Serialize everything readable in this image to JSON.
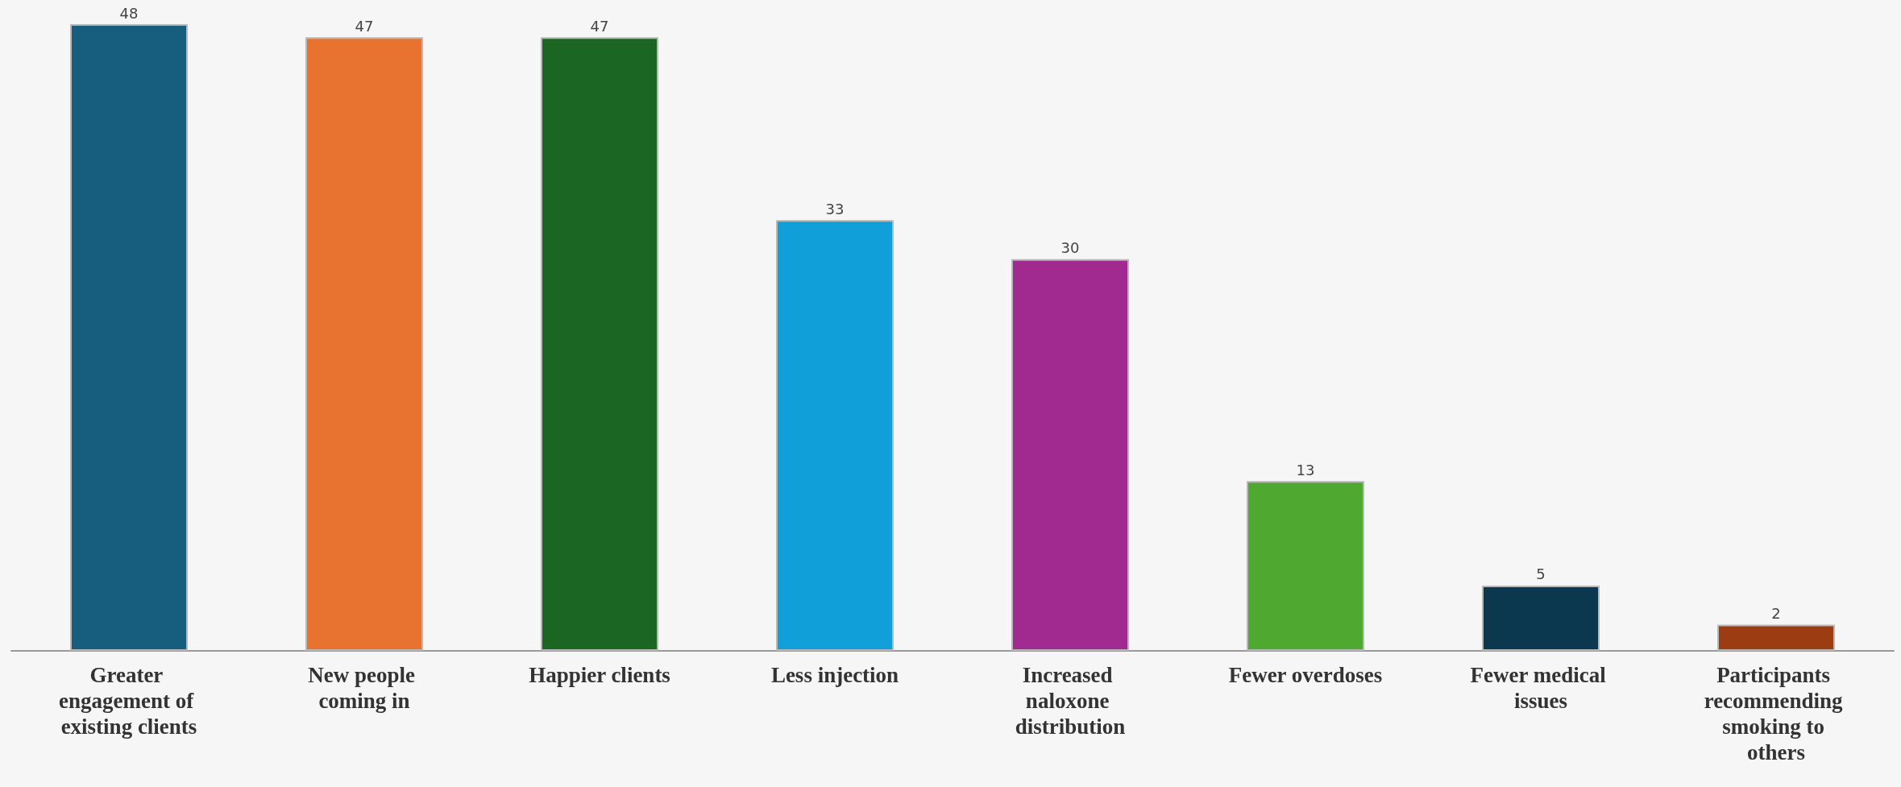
{
  "chart_data": {
    "type": "bar",
    "data_labels": true,
    "categories": [
      "Greater engagement of existing clients",
      "New people coming in",
      "Happier clients",
      "Less injection",
      "Increased naloxone distribution",
      "Fewer overdoses",
      "Fewer medical issues",
      "Participants recommending smoking to others"
    ],
    "values": [
      48,
      47,
      47,
      33,
      30,
      13,
      5,
      2
    ],
    "colors": [
      "#175e7e",
      "#e87330",
      "#1b6623",
      "#109fd9",
      "#a02a8f",
      "#4fa82f",
      "#0b384e",
      "#9b3c12"
    ]
  }
}
